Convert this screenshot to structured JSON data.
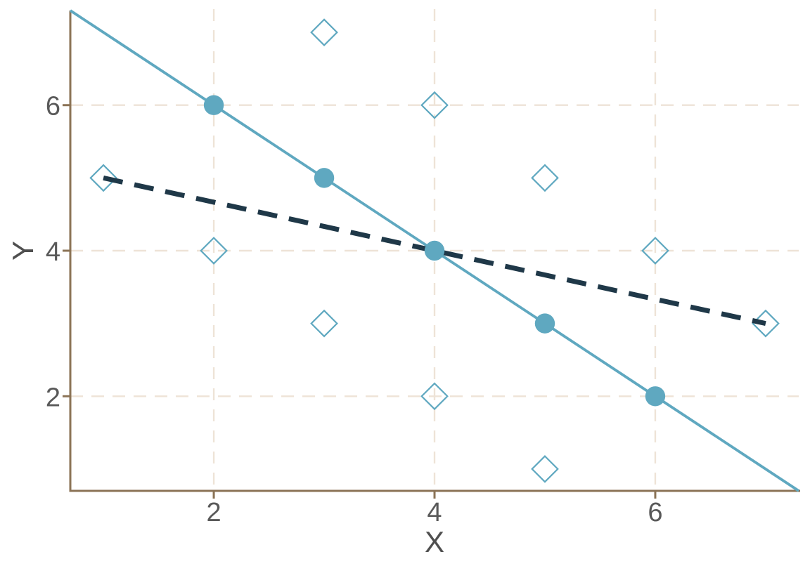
{
  "chart_data": {
    "type": "scatter",
    "title": "",
    "xlabel": "X",
    "ylabel": "Y",
    "xlim": [
      0.7,
      7.3
    ],
    "ylim": [
      0.7,
      7.3
    ],
    "x_ticks": [
      2,
      4,
      6
    ],
    "y_ticks": [
      2,
      4,
      6
    ],
    "grid": {
      "x": [
        2,
        4,
        6
      ],
      "y": [
        2,
        4,
        6
      ],
      "style": "dashed",
      "color": "#EEE3D7"
    },
    "legend": "none",
    "series": [
      {
        "name": "filled-circle-points",
        "type": "scatter",
        "marker": "filled-circle",
        "color": "#5FA8C0",
        "points": [
          [
            2,
            6
          ],
          [
            3,
            5
          ],
          [
            4,
            4
          ],
          [
            5,
            3
          ],
          [
            6,
            2
          ]
        ]
      },
      {
        "name": "open-diamond-points",
        "type": "scatter",
        "marker": "open-diamond",
        "color": "#5FA8C0",
        "points": [
          [
            1,
            5
          ],
          [
            2,
            4
          ],
          [
            3,
            7
          ],
          [
            3,
            3
          ],
          [
            4,
            6
          ],
          [
            4,
            2
          ],
          [
            5,
            5
          ],
          [
            5,
            1
          ],
          [
            6,
            4
          ],
          [
            7,
            3
          ]
        ]
      },
      {
        "name": "solid-line",
        "type": "line",
        "style": "solid",
        "color": "#5FA8C0",
        "equation": "y = 8 - x",
        "slope": -1,
        "intercept": 8,
        "x_range": [
          0.7,
          7.3
        ]
      },
      {
        "name": "dashed-regression-line",
        "type": "line",
        "style": "dashed",
        "color": "#1F3848",
        "equation": "y = 16/3 - x/3",
        "slope": -0.3333333,
        "intercept": 5.3333333,
        "x_range": [
          1,
          7
        ]
      }
    ],
    "axis_color": "#8B7356",
    "tick_label_color": "#595959",
    "axis_title_color": "#4F4F4F",
    "background": "#FFFFFF"
  }
}
